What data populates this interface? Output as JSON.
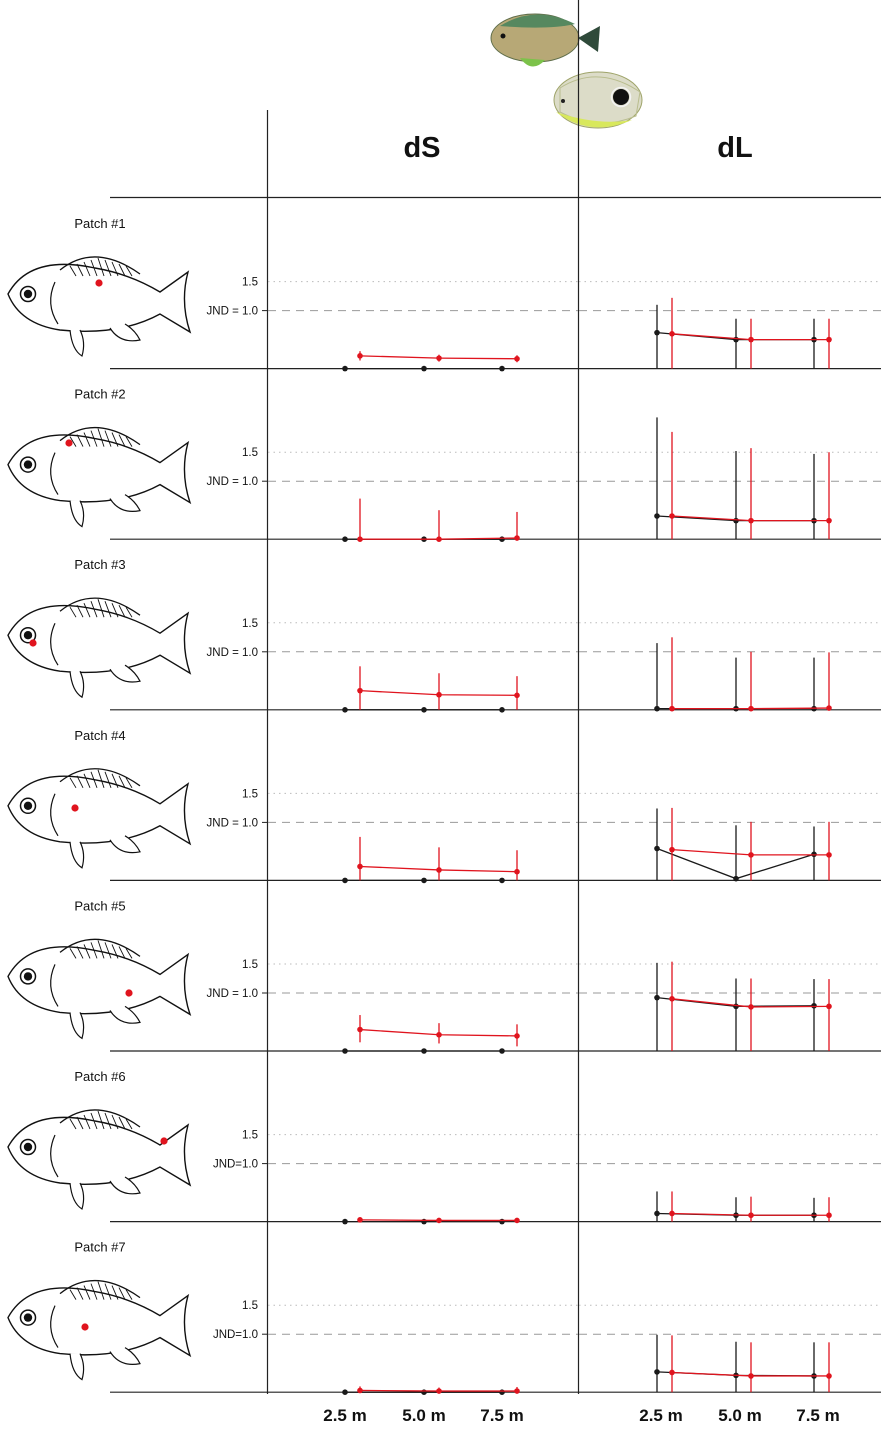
{
  "columns": [
    "dS",
    "dL"
  ],
  "x_tick_labels": [
    "2.5 m",
    "5.0 m",
    "7.5 m"
  ],
  "y_tick_labels": {
    "upper": "1.5",
    "jnd_spaced": "JND = 1.0",
    "jnd_compact": "JND=1.0"
  },
  "colors": {
    "series_black": "#1a1a1a",
    "series_red": "#e0141e",
    "marker": "#e0141e"
  },
  "chart_data": [
    {
      "patch": "Patch #1",
      "marker_location": "mid-body",
      "jnd_label": "JND = 1.0",
      "panels": [
        {
          "metric": "dS",
          "type": "line",
          "x": [
            "2.5 m",
            "5.0 m",
            "7.5 m"
          ],
          "ylim": [
            0,
            2.2
          ],
          "jnd": 1.0,
          "gridline": 1.5,
          "series": [
            {
              "color": "black",
              "values": [
                0.0,
                0.0,
                0.0
              ],
              "err_low": [
                0,
                0,
                0
              ],
              "err_high": [
                0,
                0,
                0
              ]
            },
            {
              "color": "red",
              "values": [
                0.22,
                0.18,
                0.17
              ],
              "err_low": [
                0.08,
                0.06,
                0.06
              ],
              "err_high": [
                0.08,
                0.06,
                0.06
              ]
            }
          ]
        },
        {
          "metric": "dL",
          "type": "line",
          "x": [
            "2.5 m",
            "5.0 m",
            "7.5 m"
          ],
          "ylim": [
            0,
            2.2
          ],
          "jnd": 1.0,
          "gridline": 1.5,
          "series": [
            {
              "color": "black",
              "values": [
                0.62,
                0.5,
                0.5
              ],
              "err_low": [
                0.62,
                0.5,
                0.5
              ],
              "err_high": [
                0.48,
                0.36,
                0.36
              ]
            },
            {
              "color": "red",
              "values": [
                0.6,
                0.5,
                0.5
              ],
              "err_low": [
                0.6,
                0.5,
                0.5
              ],
              "err_high": [
                0.62,
                0.36,
                0.36
              ]
            }
          ]
        }
      ]
    },
    {
      "patch": "Patch #2",
      "marker_location": "upper-back",
      "jnd_label": "JND = 1.0",
      "panels": [
        {
          "metric": "dS",
          "type": "line",
          "x": [
            "2.5 m",
            "5.0 m",
            "7.5 m"
          ],
          "ylim": [
            0,
            2.2
          ],
          "jnd": 1.0,
          "gridline": 1.5,
          "series": [
            {
              "color": "black",
              "values": [
                0.0,
                0.0,
                0.0
              ],
              "err_low": [
                0,
                0,
                0
              ],
              "err_high": [
                0,
                0,
                0
              ]
            },
            {
              "color": "red",
              "values": [
                0.0,
                0.0,
                0.02
              ],
              "err_low": [
                0,
                0,
                0
              ],
              "err_high": [
                0.7,
                0.5,
                0.45
              ]
            }
          ]
        },
        {
          "metric": "dL",
          "type": "line",
          "x": [
            "2.5 m",
            "5.0 m",
            "7.5 m"
          ],
          "ylim": [
            0,
            2.2
          ],
          "jnd": 1.0,
          "gridline": 1.5,
          "series": [
            {
              "color": "black",
              "values": [
                0.4,
                0.32,
                0.32
              ],
              "err_low": [
                0.4,
                0.32,
                0.32
              ],
              "err_high": [
                1.7,
                1.2,
                1.15
              ]
            },
            {
              "color": "red",
              "values": [
                0.4,
                0.32,
                0.32
              ],
              "err_low": [
                0.4,
                0.32,
                0.32
              ],
              "err_high": [
                1.45,
                1.25,
                1.18
              ]
            }
          ]
        }
      ]
    },
    {
      "patch": "Patch #3",
      "marker_location": "jaw",
      "jnd_label": "JND = 1.0",
      "panels": [
        {
          "metric": "dS",
          "type": "line",
          "x": [
            "2.5 m",
            "5.0 m",
            "7.5 m"
          ],
          "ylim": [
            0,
            2.2
          ],
          "jnd": 1.0,
          "gridline": 1.5,
          "series": [
            {
              "color": "black",
              "values": [
                0.0,
                0.0,
                0.0
              ],
              "err_low": [
                0,
                0,
                0
              ],
              "err_high": [
                0,
                0,
                0
              ]
            },
            {
              "color": "red",
              "values": [
                0.33,
                0.26,
                0.25
              ],
              "err_low": [
                0.33,
                0.26,
                0.25
              ],
              "err_high": [
                0.42,
                0.37,
                0.33
              ]
            }
          ]
        },
        {
          "metric": "dL",
          "type": "line",
          "x": [
            "2.5 m",
            "5.0 m",
            "7.5 m"
          ],
          "ylim": [
            0,
            2.2
          ],
          "jnd": 1.0,
          "gridline": 1.5,
          "series": [
            {
              "color": "black",
              "values": [
                0.02,
                0.02,
                0.02
              ],
              "err_low": [
                0.02,
                0.02,
                0.02
              ],
              "err_high": [
                1.13,
                0.88,
                0.88
              ]
            },
            {
              "color": "red",
              "values": [
                0.02,
                0.02,
                0.03
              ],
              "err_low": [
                0.02,
                0.02,
                0.03
              ],
              "err_high": [
                1.23,
                0.98,
                0.96
              ]
            }
          ]
        }
      ]
    },
    {
      "patch": "Patch #4",
      "marker_location": "pelvic-fin",
      "jnd_label": "JND = 1.0",
      "panels": [
        {
          "metric": "dS",
          "type": "line",
          "x": [
            "2.5 m",
            "5.0 m",
            "7.5 m"
          ],
          "ylim": [
            0,
            2.2
          ],
          "jnd": 1.0,
          "gridline": 1.5,
          "series": [
            {
              "color": "black",
              "values": [
                0.0,
                0.0,
                0.0
              ],
              "err_low": [
                0,
                0,
                0
              ],
              "err_high": [
                0,
                0,
                0
              ]
            },
            {
              "color": "red",
              "values": [
                0.24,
                0.18,
                0.15
              ],
              "err_low": [
                0.24,
                0.18,
                0.15
              ],
              "err_high": [
                0.51,
                0.39,
                0.37
              ]
            }
          ]
        },
        {
          "metric": "dL",
          "type": "line",
          "x": [
            "2.5 m",
            "5.0 m",
            "7.5 m"
          ],
          "ylim": [
            0,
            2.2
          ],
          "jnd": 1.0,
          "gridline": 1.5,
          "series": [
            {
              "color": "black",
              "values": [
                0.55,
                0.03,
                0.45
              ],
              "err_low": [
                0.55,
                0.03,
                0.45
              ],
              "err_high": [
                0.69,
                0.92,
                0.48
              ]
            },
            {
              "color": "red",
              "values": [
                0.53,
                0.44,
                0.44
              ],
              "err_low": [
                0.53,
                0.44,
                0.44
              ],
              "err_high": [
                0.72,
                0.57,
                0.57
              ]
            }
          ]
        }
      ]
    },
    {
      "patch": "Patch #5",
      "marker_location": "anal-fin",
      "jnd_label": "JND = 1.0",
      "panels": [
        {
          "metric": "dS",
          "type": "line",
          "x": [
            "2.5 m",
            "5.0 m",
            "7.5 m"
          ],
          "ylim": [
            0,
            2.2
          ],
          "jnd": 1.0,
          "gridline": 1.5,
          "series": [
            {
              "color": "black",
              "values": [
                0.0,
                0.0,
                0.0
              ],
              "err_low": [
                0,
                0,
                0
              ],
              "err_high": [
                0,
                0,
                0
              ]
            },
            {
              "color": "red",
              "values": [
                0.37,
                0.28,
                0.26
              ],
              "err_low": [
                0.22,
                0.15,
                0.18
              ],
              "err_high": [
                0.25,
                0.2,
                0.2
              ]
            }
          ]
        },
        {
          "metric": "dL",
          "type": "line",
          "x": [
            "2.5 m",
            "5.0 m",
            "7.5 m"
          ],
          "ylim": [
            0,
            2.2
          ],
          "jnd": 1.0,
          "gridline": 1.5,
          "series": [
            {
              "color": "black",
              "values": [
                0.92,
                0.77,
                0.78
              ],
              "err_low": [
                0.92,
                0.77,
                0.78
              ],
              "err_high": [
                0.6,
                0.48,
                0.46
              ]
            },
            {
              "color": "red",
              "values": [
                0.9,
                0.76,
                0.77
              ],
              "err_low": [
                0.9,
                0.76,
                0.77
              ],
              "err_high": [
                0.64,
                0.49,
                0.47
              ]
            }
          ]
        }
      ]
    },
    {
      "patch": "Patch #6",
      "marker_location": "tail-base",
      "jnd_label": "JND=1.0",
      "panels": [
        {
          "metric": "dS",
          "type": "line",
          "x": [
            "2.5 m",
            "5.0 m",
            "7.5 m"
          ],
          "ylim": [
            0,
            2.2
          ],
          "jnd": 1.0,
          "gridline": 1.5,
          "series": [
            {
              "color": "black",
              "values": [
                0.0,
                0.0,
                0.0
              ],
              "err_low": [
                0,
                0,
                0
              ],
              "err_high": [
                0,
                0,
                0
              ]
            },
            {
              "color": "red",
              "values": [
                0.03,
                0.02,
                0.02
              ],
              "err_low": [
                0,
                0,
                0
              ],
              "err_high": [
                0,
                0,
                0
              ]
            }
          ]
        },
        {
          "metric": "dL",
          "type": "line",
          "x": [
            "2.5 m",
            "5.0 m",
            "7.5 m"
          ],
          "ylim": [
            0,
            2.2
          ],
          "jnd": 1.0,
          "gridline": 1.5,
          "series": [
            {
              "color": "black",
              "values": [
                0.14,
                0.11,
                0.11
              ],
              "err_low": [
                0.14,
                0.11,
                0.11
              ],
              "err_high": [
                0.38,
                0.31,
                0.3
              ]
            },
            {
              "color": "red",
              "values": [
                0.14,
                0.11,
                0.11
              ],
              "err_low": [
                0.14,
                0.11,
                0.11
              ],
              "err_high": [
                0.38,
                0.32,
                0.31
              ]
            }
          ]
        }
      ]
    },
    {
      "patch": "Patch #7",
      "marker_location": "belly",
      "jnd_label": "JND=1.0",
      "panels": [
        {
          "metric": "dS",
          "type": "line",
          "x": [
            "2.5 m",
            "5.0 m",
            "7.5 m"
          ],
          "ylim": [
            0,
            2.2
          ],
          "jnd": 1.0,
          "gridline": 1.5,
          "series": [
            {
              "color": "black",
              "values": [
                0.0,
                0.0,
                0.0
              ],
              "err_low": [
                0,
                0,
                0
              ],
              "err_high": [
                0,
                0,
                0
              ]
            },
            {
              "color": "red",
              "values": [
                0.03,
                0.02,
                0.02
              ],
              "err_low": [
                0.03,
                0.02,
                0.02
              ],
              "err_high": [
                0.07,
                0.06,
                0.07
              ]
            }
          ]
        },
        {
          "metric": "dL",
          "type": "line",
          "x": [
            "2.5 m",
            "5.0 m",
            "7.5 m"
          ],
          "ylim": [
            0,
            2.2
          ],
          "jnd": 1.0,
          "gridline": 1.5,
          "series": [
            {
              "color": "black",
              "values": [
                0.35,
                0.29,
                0.28
              ],
              "err_low": [
                0.35,
                0.29,
                0.28
              ],
              "err_high": [
                0.64,
                0.58,
                0.58
              ]
            },
            {
              "color": "red",
              "values": [
                0.34,
                0.28,
                0.28
              ],
              "err_low": [
                0.34,
                0.28,
                0.28
              ],
              "err_high": [
                0.64,
                0.58,
                0.58
              ]
            }
          ]
        }
      ]
    }
  ]
}
